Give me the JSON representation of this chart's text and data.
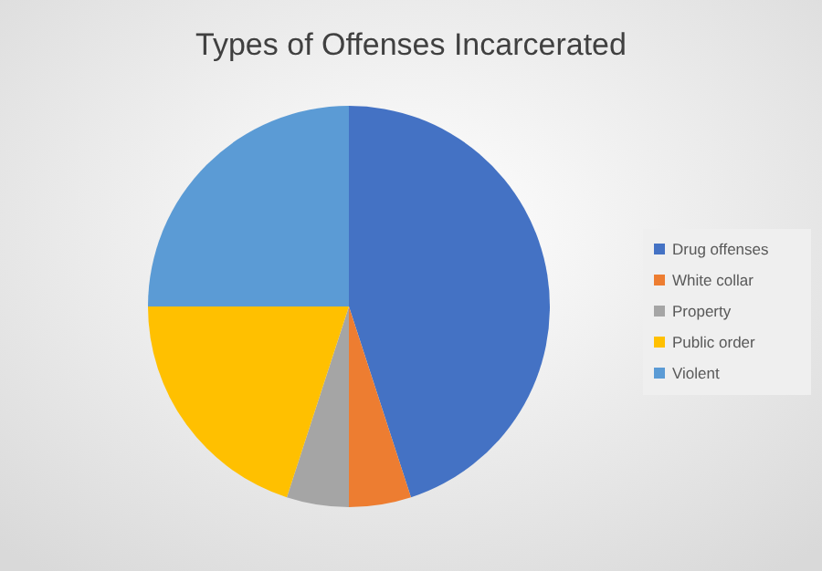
{
  "chart_data": {
    "type": "pie",
    "title": "Types of Offenses Incarcerated",
    "categories": [
      "Drug offenses",
      "White collar",
      "Property",
      "Public order",
      "Violent"
    ],
    "values": [
      45,
      5,
      5,
      20,
      25
    ],
    "colors": [
      "#4472c4",
      "#ed7d31",
      "#a5a5a5",
      "#ffc000",
      "#5b9bd5"
    ],
    "legend": "right"
  }
}
